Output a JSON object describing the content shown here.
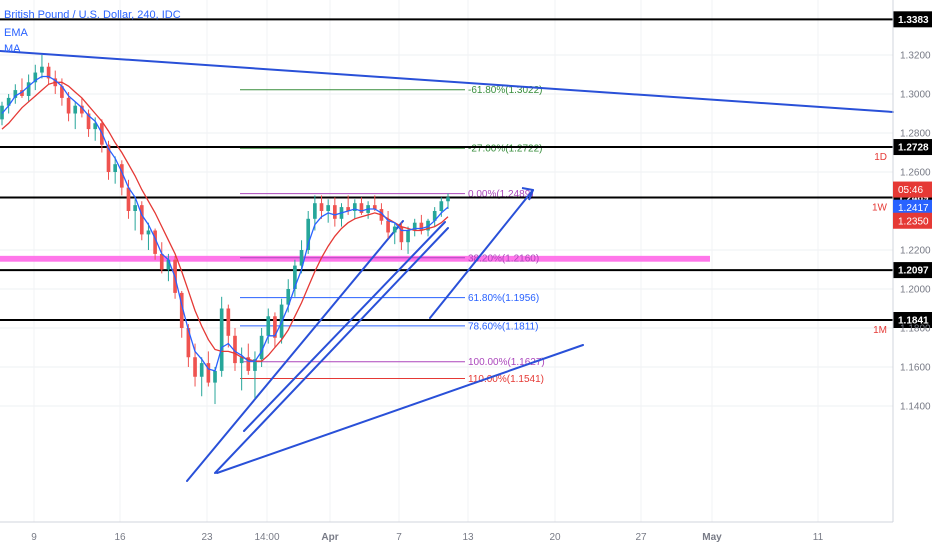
{
  "legend": {
    "title": "British Pound / U.S. Dollar, 240, IDC",
    "ema_label": "EMA",
    "ma_label": "MA"
  },
  "chart_data": {
    "type": "candlestick",
    "symbol": "GBPUSD",
    "timeframe": "240",
    "x_ticks": [
      "9",
      "16",
      "23",
      "14:00",
      "Apr",
      "7",
      "13",
      "20",
      "27",
      "May",
      "11"
    ],
    "y_ticks": [
      1.32,
      1.3,
      1.28,
      1.26,
      1.22,
      1.2,
      1.18,
      1.16,
      1.14
    ],
    "ylim": [
      1.124,
      1.348
    ],
    "grid": true,
    "horizontal_levels": [
      {
        "label": "1.3383",
        "value": 1.3383
      },
      {
        "label": "1.2728",
        "value": 1.2728,
        "tag": "1D"
      },
      {
        "label": "1.2469",
        "value": 1.2469,
        "tag": "1W"
      },
      {
        "label": "1.2097",
        "value": 1.2097
      },
      {
        "label": "1.1841",
        "value": 1.1841,
        "tag": "1M"
      }
    ],
    "price_badges": [
      {
        "label": "05:46",
        "value": 1.251,
        "color": "#e53935"
      },
      {
        "label": "1.2417",
        "value": 1.2417,
        "color": "#2962ff"
      },
      {
        "label": "1.2350",
        "value": 1.235,
        "color": "#e53935"
      }
    ],
    "fib_levels": [
      {
        "label": "-61.80%(1.3022)",
        "value": 1.3022,
        "color": "#388e3c"
      },
      {
        "label": "-27.00%(1.2722)",
        "value": 1.2722,
        "color": "#388e3c"
      },
      {
        "label": "0.00%(1.2489)",
        "value": 1.2489,
        "color": "#ab47bc"
      },
      {
        "label": "38.20%(1.2160)",
        "value": 1.216,
        "color": "#ab47bc"
      },
      {
        "label": "61.80%(1.1956)",
        "value": 1.1956,
        "color": "#2962ff"
      },
      {
        "label": "78.60%(1.1811)",
        "value": 1.1811,
        "color": "#2962ff"
      },
      {
        "label": "100.00%(1.1627)",
        "value": 1.1627,
        "color": "#ab47bc"
      },
      {
        "label": "110.00%(1.1541)",
        "value": 1.1541,
        "color": "#e53935"
      }
    ],
    "support_zone": {
      "from": 1.214,
      "to": 1.217,
      "color": "#ff5ee6"
    },
    "candles": [
      [
        1.287,
        1.296,
        1.284,
        1.294
      ],
      [
        1.294,
        1.3,
        1.29,
        1.298
      ],
      [
        1.298,
        1.305,
        1.295,
        1.302
      ],
      [
        1.302,
        1.308,
        1.298,
        1.299
      ],
      [
        1.299,
        1.31,
        1.296,
        1.306
      ],
      [
        1.306,
        1.315,
        1.302,
        1.311
      ],
      [
        1.311,
        1.32,
        1.308,
        1.314
      ],
      [
        1.314,
        1.316,
        1.305,
        1.308
      ],
      [
        1.308,
        1.312,
        1.3,
        1.304
      ],
      [
        1.304,
        1.308,
        1.294,
        1.298
      ],
      [
        1.298,
        1.301,
        1.286,
        1.29
      ],
      [
        1.29,
        1.296,
        1.282,
        1.294
      ],
      [
        1.294,
        1.298,
        1.288,
        1.29
      ],
      [
        1.29,
        1.292,
        1.278,
        1.282
      ],
      [
        1.282,
        1.288,
        1.276,
        1.285
      ],
      [
        1.285,
        1.287,
        1.27,
        1.274
      ],
      [
        1.274,
        1.276,
        1.256,
        1.26
      ],
      [
        1.26,
        1.268,
        1.254,
        1.264
      ],
      [
        1.264,
        1.266,
        1.248,
        1.252
      ],
      [
        1.252,
        1.256,
        1.236,
        1.24
      ],
      [
        1.24,
        1.246,
        1.23,
        1.243
      ],
      [
        1.243,
        1.245,
        1.225,
        1.228
      ],
      [
        1.228,
        1.234,
        1.22,
        1.23
      ],
      [
        1.23,
        1.231,
        1.215,
        1.218
      ],
      [
        1.218,
        1.224,
        1.208,
        1.21
      ],
      [
        1.21,
        1.218,
        1.204,
        1.215
      ],
      [
        1.215,
        1.217,
        1.195,
        1.198
      ],
      [
        1.198,
        1.199,
        1.175,
        1.18
      ],
      [
        1.18,
        1.182,
        1.16,
        1.165
      ],
      [
        1.165,
        1.172,
        1.15,
        1.155
      ],
      [
        1.155,
        1.165,
        1.145,
        1.162
      ],
      [
        1.162,
        1.168,
        1.15,
        1.152
      ],
      [
        1.152,
        1.16,
        1.141,
        1.158
      ],
      [
        1.158,
        1.196,
        1.155,
        1.19
      ],
      [
        1.19,
        1.192,
        1.17,
        1.176
      ],
      [
        1.176,
        1.18,
        1.158,
        1.162
      ],
      [
        1.162,
        1.17,
        1.148,
        1.165
      ],
      [
        1.165,
        1.172,
        1.156,
        1.158
      ],
      [
        1.158,
        1.168,
        1.144,
        1.164
      ],
      [
        1.164,
        1.18,
        1.16,
        1.176
      ],
      [
        1.176,
        1.19,
        1.172,
        1.186
      ],
      [
        1.186,
        1.188,
        1.17,
        1.175
      ],
      [
        1.175,
        1.195,
        1.172,
        1.192
      ],
      [
        1.192,
        1.205,
        1.188,
        1.2
      ],
      [
        1.2,
        1.215,
        1.196,
        1.212
      ],
      [
        1.212,
        1.225,
        1.208,
        1.22
      ],
      [
        1.22,
        1.24,
        1.218,
        1.236
      ],
      [
        1.236,
        1.248,
        1.23,
        1.244
      ],
      [
        1.244,
        1.248,
        1.236,
        1.24
      ],
      [
        1.24,
        1.246,
        1.234,
        1.243
      ],
      [
        1.243,
        1.247,
        1.232,
        1.236
      ],
      [
        1.236,
        1.244,
        1.232,
        1.242
      ],
      [
        1.242,
        1.248,
        1.238,
        1.24
      ],
      [
        1.24,
        1.246,
        1.236,
        1.244
      ],
      [
        1.244,
        1.247,
        1.238,
        1.239
      ],
      [
        1.239,
        1.245,
        1.236,
        1.243
      ],
      [
        1.243,
        1.248,
        1.24,
        1.241
      ],
      [
        1.241,
        1.244,
        1.233,
        1.235
      ],
      [
        1.235,
        1.24,
        1.226,
        1.229
      ],
      [
        1.229,
        1.234,
        1.223,
        1.232
      ],
      [
        1.232,
        1.234,
        1.22,
        1.224
      ],
      [
        1.224,
        1.232,
        1.218,
        1.23
      ],
      [
        1.23,
        1.236,
        1.227,
        1.234
      ],
      [
        1.234,
        1.238,
        1.228,
        1.23
      ],
      [
        1.23,
        1.236,
        1.227,
        1.235
      ],
      [
        1.235,
        1.242,
        1.232,
        1.24
      ],
      [
        1.24,
        1.247,
        1.237,
        1.245
      ],
      [
        1.245,
        1.249,
        1.241,
        1.247
      ]
    ],
    "ema": [
      1.29,
      1.294,
      1.299,
      1.301,
      1.304,
      1.307,
      1.309,
      1.309,
      1.307,
      1.304,
      1.299,
      1.296,
      1.293,
      1.289,
      1.286,
      1.28,
      1.272,
      1.267,
      1.26,
      1.252,
      1.247,
      1.238,
      1.233,
      1.226,
      1.218,
      1.215,
      1.206,
      1.192,
      1.179,
      1.168,
      1.164,
      1.159,
      1.158,
      1.17,
      1.172,
      1.168,
      1.166,
      1.163,
      1.163,
      1.168,
      1.176,
      1.176,
      1.183,
      1.191,
      1.201,
      1.21,
      1.223,
      1.233,
      1.237,
      1.239,
      1.238,
      1.239,
      1.24,
      1.241,
      1.24,
      1.241,
      1.241,
      1.239,
      1.235,
      1.234,
      1.23,
      1.23,
      1.231,
      1.231,
      1.232,
      1.235,
      1.239,
      1.242
    ],
    "ma": [
      1.282,
      1.285,
      1.289,
      1.293,
      1.296,
      1.299,
      1.302,
      1.305,
      1.306,
      1.306,
      1.304,
      1.301,
      1.298,
      1.294,
      1.29,
      1.286,
      1.281,
      1.275,
      1.27,
      1.264,
      1.258,
      1.251,
      1.245,
      1.239,
      1.232,
      1.225,
      1.218,
      1.209,
      1.199,
      1.189,
      1.181,
      1.174,
      1.169,
      1.168,
      1.168,
      1.167,
      1.165,
      1.164,
      1.163,
      1.163,
      1.166,
      1.17,
      1.174,
      1.179,
      1.186,
      1.193,
      1.201,
      1.209,
      1.216,
      1.222,
      1.227,
      1.231,
      1.234,
      1.236,
      1.237,
      1.238,
      1.239,
      1.238,
      1.236,
      1.234,
      1.232,
      1.231,
      1.23,
      1.23,
      1.231,
      1.232,
      1.234,
      1.237
    ]
  }
}
